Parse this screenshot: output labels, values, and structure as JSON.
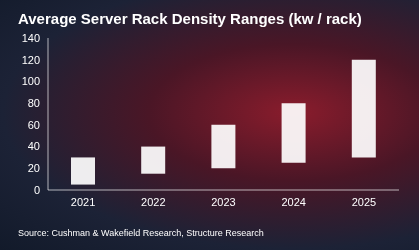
{
  "chart_data": {
    "type": "bar",
    "title": "Average Server Rack Density Ranges (kw / rack)",
    "source": "Source: Cushman & Wakefield Research, Structure Research",
    "categories": [
      "2021",
      "2022",
      "2023",
      "2024",
      "2025"
    ],
    "values": [
      [
        5,
        30
      ],
      [
        15,
        40
      ],
      [
        20,
        60
      ],
      [
        25,
        80
      ],
      [
        30,
        120
      ]
    ],
    "color": "#ffffff",
    "ylim": [
      0,
      140
    ],
    "yticks": [
      0,
      20,
      40,
      60,
      80,
      100,
      120,
      140
    ],
    "grid": false
  }
}
